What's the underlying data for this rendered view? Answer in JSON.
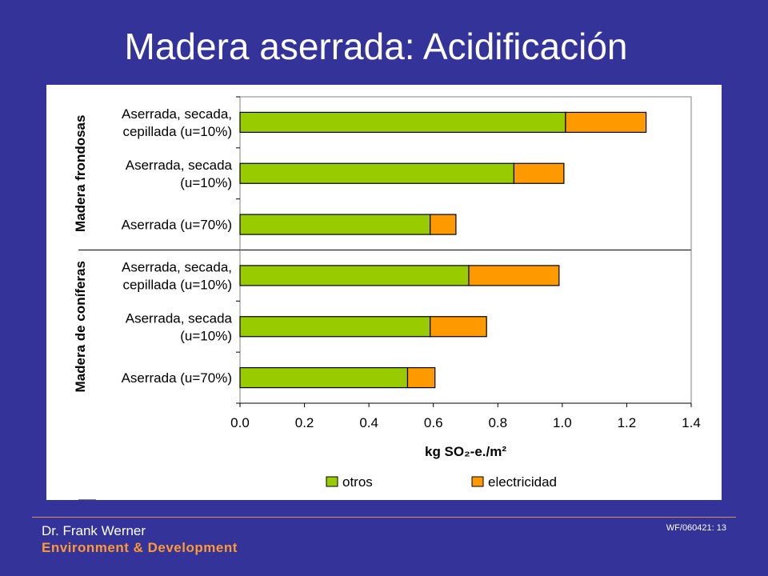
{
  "slide": {
    "title": "Madera aserrada: Acidificación",
    "footer_author": "Dr. Frank Werner",
    "footer_org": "Environment & Development",
    "footer_ref": "WF/060421:  13"
  },
  "chart_data": {
    "type": "bar",
    "orientation": "horizontal",
    "stacked": true,
    "groups": [
      {
        "label": "Madera frondosas",
        "category_indices": [
          0,
          1,
          2
        ]
      },
      {
        "label": "Madera de coníferas",
        "category_indices": [
          3,
          4,
          5
        ]
      }
    ],
    "categories": [
      [
        "Aserrada, secada,",
        "cepillada (u=10%)"
      ],
      [
        "Aserrada, secada",
        "(u=10%)"
      ],
      [
        "Aserrada (u=70%)"
      ],
      [
        "Aserrada, secada,",
        "cepillada (u=10%)"
      ],
      [
        "Aserrada, secada",
        "(u=10%)"
      ],
      [
        "Aserrada (u=70%)"
      ]
    ],
    "series": [
      {
        "name": "otros",
        "color": "#99cc00",
        "values": [
          1.01,
          0.85,
          0.59,
          0.71,
          0.59,
          0.52
        ]
      },
      {
        "name": "electricidad",
        "color": "#ff9900",
        "values": [
          0.25,
          0.155,
          0.08,
          0.28,
          0.175,
          0.085
        ]
      }
    ],
    "xlabel": "kg SO₂-e./m²",
    "xlim": [
      0,
      1.4
    ],
    "xticks": [
      "0.0",
      "0.2",
      "0.4",
      "0.6",
      "0.8",
      "1.0",
      "1.2",
      "1.4"
    ],
    "grid": false,
    "legend_position": "bottom"
  }
}
